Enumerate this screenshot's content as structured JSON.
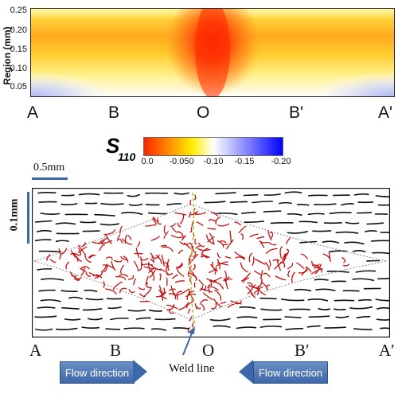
{
  "top_plot": {
    "ylabel": "Region (mm)",
    "yticks": [
      "0.25",
      "0.20",
      "0.15",
      "0.10",
      "0.05"
    ],
    "x_labels": [
      "A",
      "B",
      "O",
      "B'",
      "A'"
    ]
  },
  "colorbar": {
    "symbol": "S",
    "subscript": "110",
    "ticks": [
      "0.0",
      "-0.050",
      "-0.10",
      "-0.15",
      "-0.20"
    ],
    "colors": [
      "#ff2200",
      "#ffee00",
      "#ffffff",
      "#0000ff"
    ]
  },
  "bottom_diagram": {
    "scale_h": "0.5mm",
    "scale_v": "0.1mm",
    "x_labels": [
      "A",
      "B",
      "O",
      "B′",
      "A′"
    ],
    "weld_label": "Weld line",
    "flow_left": "Flow direction",
    "flow_right": "Flow direction",
    "arrow_color": "#3d68a8",
    "fiber_color": "#c41010",
    "strand_color": "#111111"
  }
}
